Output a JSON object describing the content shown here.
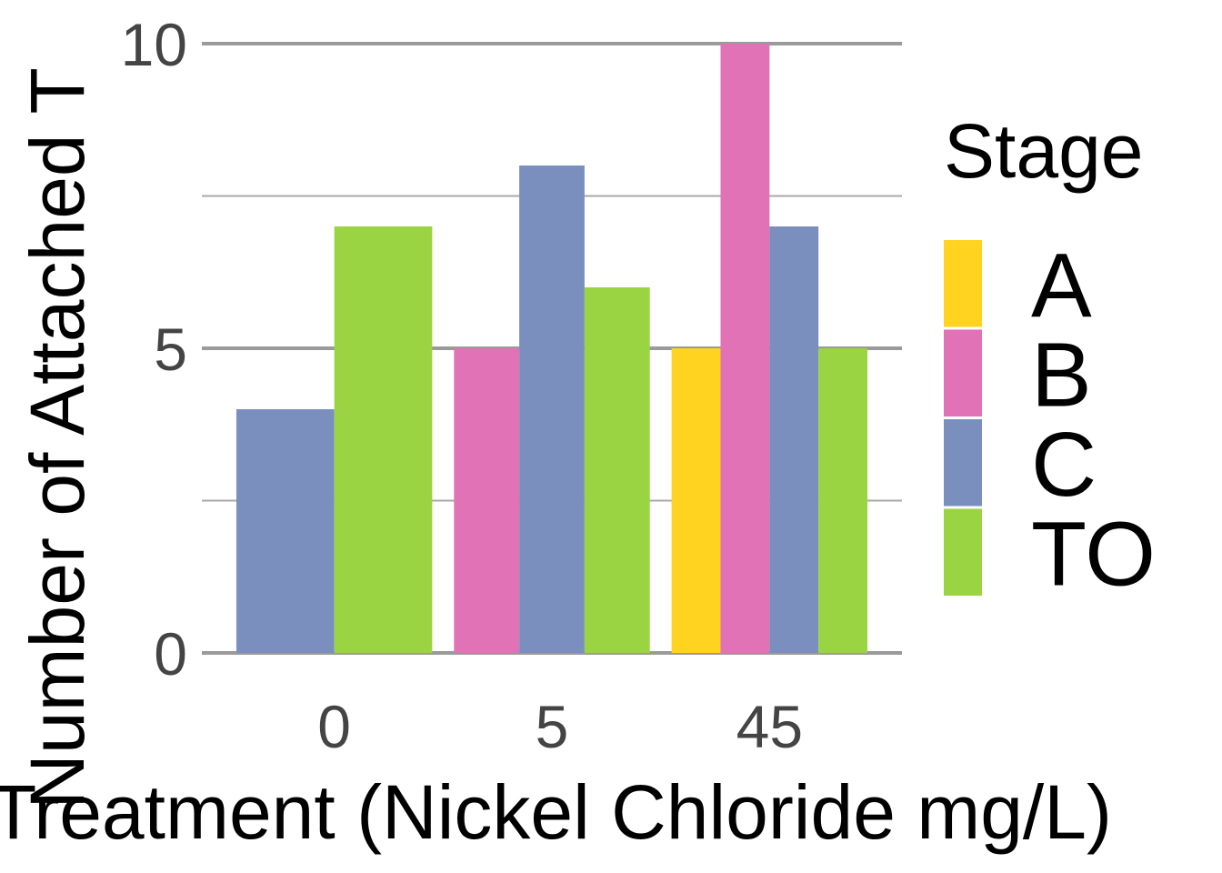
{
  "chart_data": {
    "type": "bar",
    "xlabel": "Treatment (Nickel Chloride mg/L)",
    "ylabel": "Number of Attached T",
    "categories": [
      "0",
      "5",
      "45"
    ],
    "ylim": [
      0,
      10
    ],
    "y_ticks": [
      0,
      5,
      10
    ],
    "y_ticks_labels": [
      "0",
      "5",
      "10"
    ],
    "grid": true,
    "legend": {
      "title": "Stage",
      "placement": "right",
      "entries": [
        "A",
        "B",
        "C",
        "TO"
      ]
    },
    "series": [
      {
        "name": "A",
        "color": "#FFD320",
        "values": [
          null,
          null,
          5
        ]
      },
      {
        "name": "B",
        "color": "#E072B5",
        "values": [
          null,
          5,
          10
        ]
      },
      {
        "name": "C",
        "color": "#7B8FBF",
        "values": [
          4,
          8,
          7
        ]
      },
      {
        "name": "TO",
        "color": "#9AD443",
        "values": [
          7,
          6,
          5
        ]
      }
    ]
  }
}
